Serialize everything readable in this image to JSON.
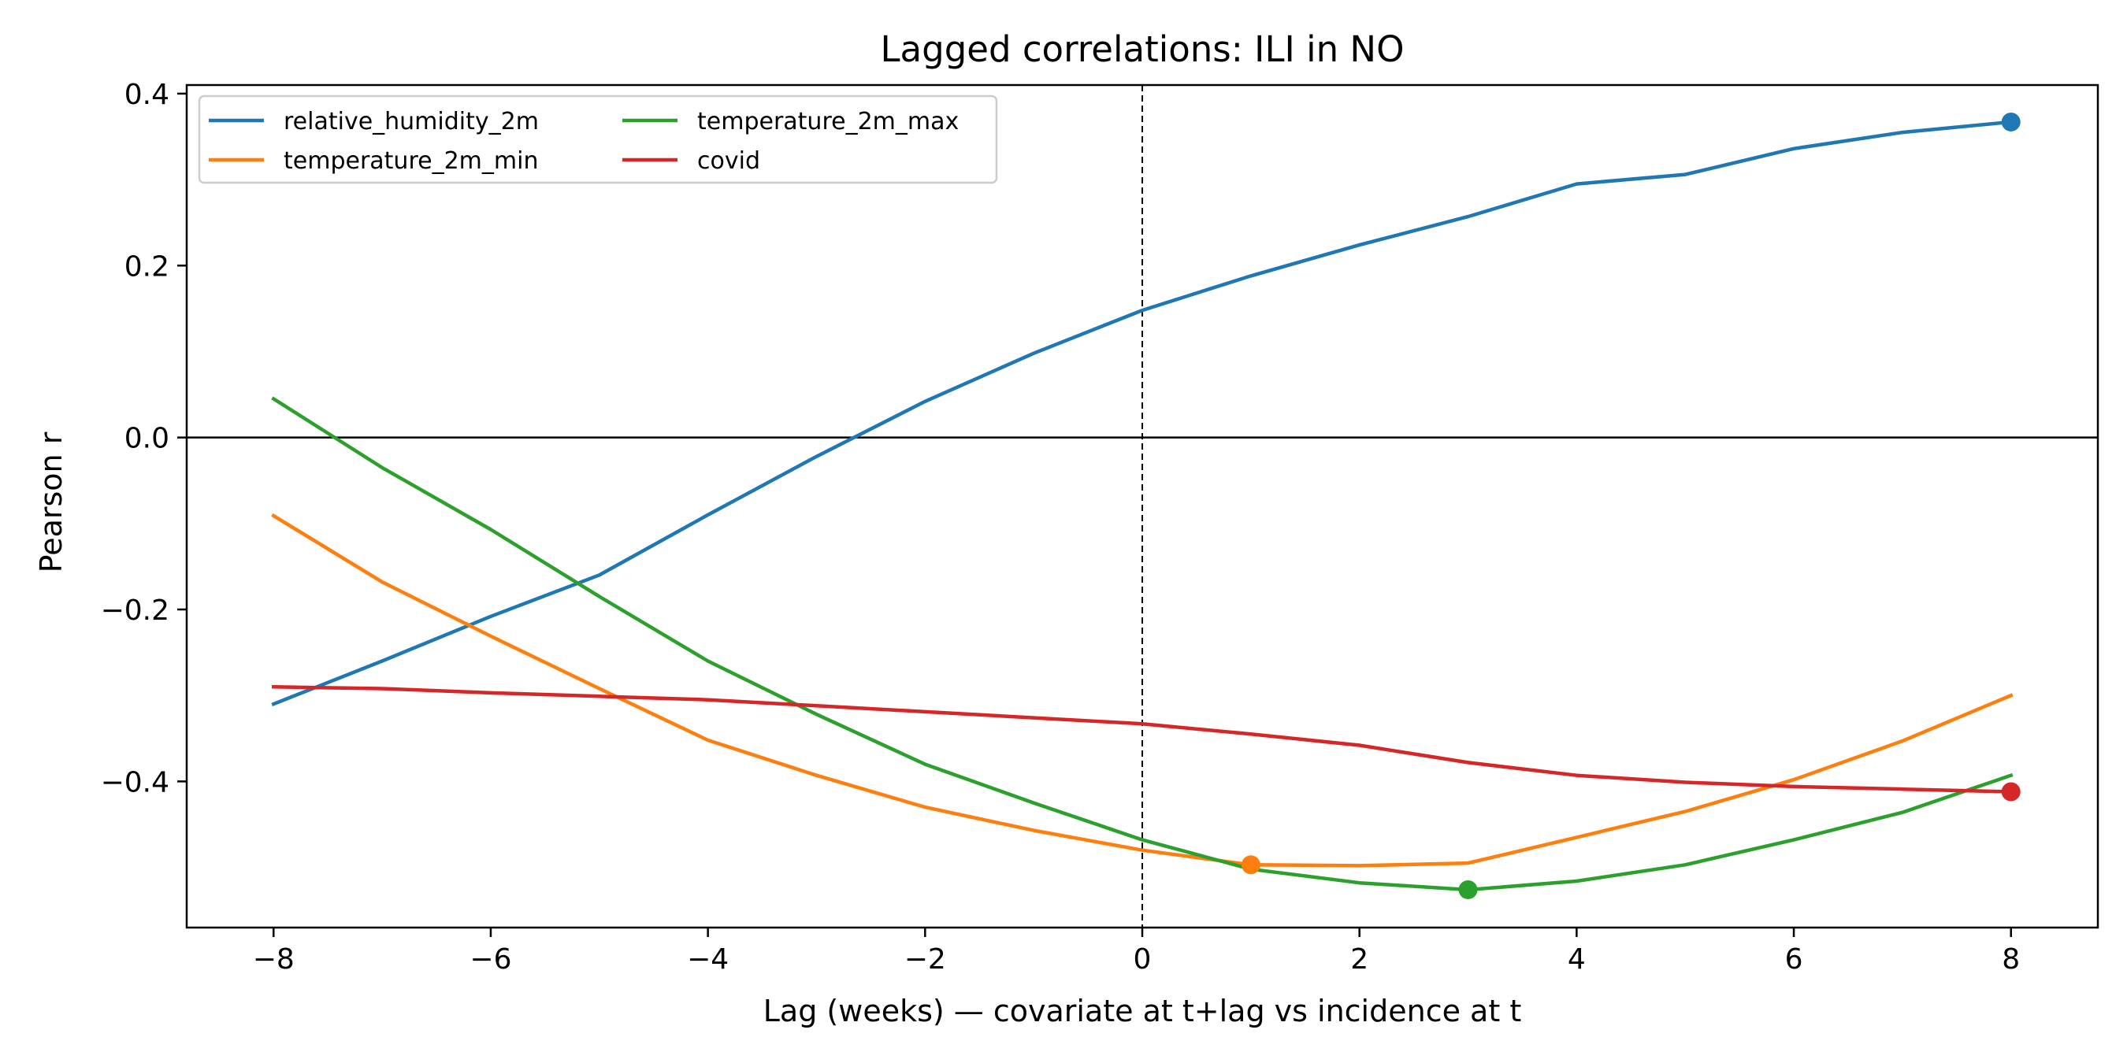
{
  "chart_data": {
    "type": "line",
    "title": "Lagged correlations: ILI in NO",
    "xlabel": "Lag (weeks) — covariate at t+lag vs incidence at t",
    "ylabel": "Pearson r",
    "xlim": [
      -8.8,
      8.8
    ],
    "ylim": [
      -0.57,
      0.41
    ],
    "x_ticks": [
      -8,
      -6,
      -4,
      -2,
      0,
      2,
      4,
      6,
      8
    ],
    "x_tick_labels": [
      "−8",
      "−6",
      "−4",
      "−2",
      "0",
      "2",
      "4",
      "6",
      "8"
    ],
    "y_ticks": [
      0.4,
      0.2,
      0.0,
      -0.2,
      -0.4
    ],
    "y_tick_labels": [
      "0.4",
      "0.2",
      "0.0",
      "−0.2",
      "−0.4"
    ],
    "grid": false,
    "reference_lines": {
      "horizontal_y": 0.0,
      "vertical_x": 0
    },
    "legend_placement": "top-left",
    "legend_columns": 2,
    "x": [
      -8,
      -7,
      -6,
      -5,
      -4,
      -3,
      -2,
      -1,
      0,
      1,
      2,
      3,
      4,
      5,
      6,
      7,
      8
    ],
    "series": [
      {
        "name": "relative_humidity_2m",
        "color": "#1f77b4",
        "values": [
          -0.31,
          -0.26,
          -0.208,
          -0.16,
          -0.09,
          -0.022,
          0.042,
          0.098,
          0.148,
          0.188,
          0.224,
          0.257,
          0.295,
          0.306,
          0.336,
          0.355,
          0.367
        ],
        "marker_at": 8
      },
      {
        "name": "temperature_2m_min",
        "color": "#ff7f0e",
        "values": [
          -0.091,
          -0.168,
          -0.231,
          -0.292,
          -0.352,
          -0.393,
          -0.43,
          -0.457,
          -0.48,
          -0.497,
          -0.498,
          -0.495,
          -0.465,
          -0.435,
          -0.398,
          -0.353,
          -0.3
        ],
        "marker_at": 1
      },
      {
        "name": "temperature_2m_max",
        "color": "#2ca02c",
        "values": [
          0.045,
          -0.035,
          -0.107,
          -0.185,
          -0.26,
          -0.322,
          -0.38,
          -0.425,
          -0.468,
          -0.502,
          -0.518,
          -0.526,
          -0.516,
          -0.497,
          -0.468,
          -0.436,
          -0.393
        ],
        "marker_at": 3
      },
      {
        "name": "covid",
        "color": "#d62728",
        "values": [
          -0.29,
          -0.292,
          -0.297,
          -0.301,
          -0.305,
          -0.312,
          -0.319,
          -0.326,
          -0.333,
          -0.345,
          -0.358,
          -0.378,
          -0.393,
          -0.401,
          -0.406,
          -0.409,
          -0.412
        ],
        "marker_at": 8
      }
    ]
  }
}
